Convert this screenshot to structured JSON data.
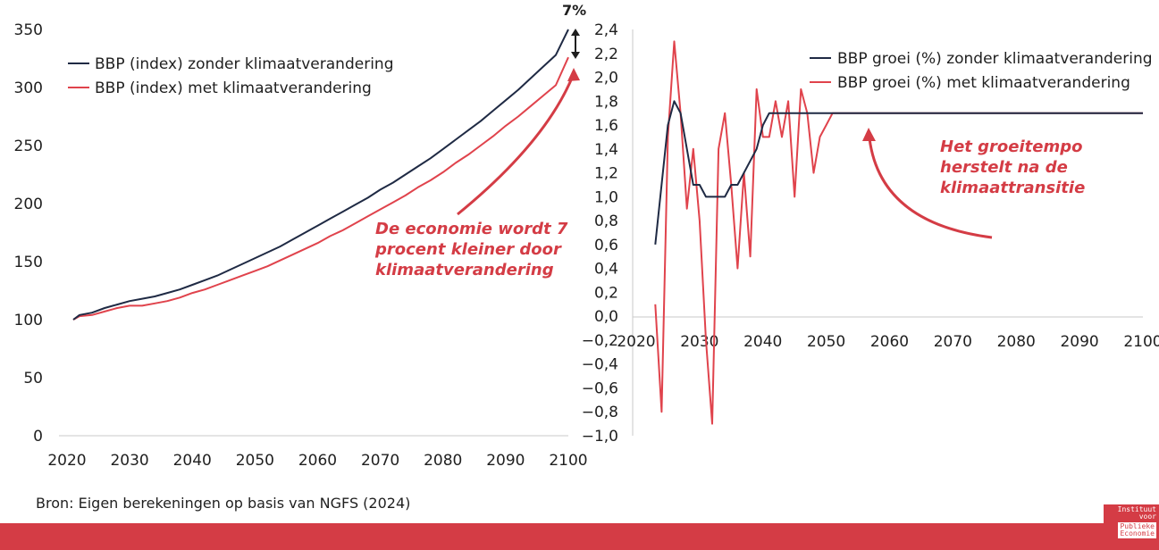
{
  "colors": {
    "dark": "#1f2a44",
    "red": "#e0434c",
    "accent": "#d43c45"
  },
  "source": "Bron: Eigen berekeningen op basis van NGFS (2024)",
  "logo": {
    "line1": "Instituut",
    "line2": "voor",
    "line3": "Publieke",
    "line4": "Economie"
  },
  "chart_data": [
    {
      "type": "line",
      "title": "",
      "xlabel": "",
      "ylabel": "",
      "xlim": [
        2020,
        2100
      ],
      "ylim": [
        0,
        350
      ],
      "xticks": [
        "2020",
        "2030",
        "2040",
        "2050",
        "2060",
        "2070",
        "2080",
        "2090",
        "2100"
      ],
      "yticks": [
        "0",
        "50",
        "100",
        "150",
        "200",
        "250",
        "300",
        "350"
      ],
      "legend_position": "top-left",
      "grid": false,
      "x": [
        2021,
        2022,
        2024,
        2026,
        2028,
        2030,
        2032,
        2034,
        2036,
        2038,
        2040,
        2042,
        2044,
        2046,
        2048,
        2050,
        2052,
        2054,
        2056,
        2058,
        2060,
        2062,
        2064,
        2066,
        2068,
        2070,
        2072,
        2074,
        2076,
        2078,
        2080,
        2082,
        2084,
        2086,
        2088,
        2090,
        2092,
        2094,
        2096,
        2098,
        2100
      ],
      "series": [
        {
          "name": "BBP (index) zonder klimaatverandering",
          "color": "#1f2a44",
          "values": [
            100,
            104,
            106,
            110,
            113,
            116,
            118,
            120,
            123,
            126,
            130,
            134,
            138,
            143,
            148,
            153,
            158,
            163,
            169,
            175,
            181,
            187,
            193,
            199,
            205,
            212,
            218,
            225,
            232,
            239,
            247,
            255,
            263,
            271,
            280,
            289,
            298,
            308,
            318,
            328,
            350
          ]
        },
        {
          "name": "BBP (index) met klimaatverandering",
          "color": "#e0434c",
          "values": [
            100,
            103,
            104,
            107,
            110,
            112,
            112,
            114,
            116,
            119,
            123,
            126,
            130,
            134,
            138,
            142,
            146,
            151,
            156,
            161,
            166,
            172,
            177,
            183,
            189,
            195,
            201,
            207,
            214,
            220,
            227,
            235,
            242,
            250,
            258,
            267,
            275,
            284,
            293,
            302,
            326
          ]
        }
      ],
      "annotations": [
        {
          "text": "7%"
        },
        {
          "text_lines": [
            "De economie wordt 7",
            "procent kleiner door",
            "klimaatverandering"
          ]
        }
      ]
    },
    {
      "type": "line",
      "title": "",
      "xlabel": "",
      "ylabel": "",
      "xlim": [
        2020,
        2100
      ],
      "ylim": [
        -1.0,
        2.4
      ],
      "xticks": [
        "2020",
        "2030",
        "2040",
        "2050",
        "2060",
        "2070",
        "2080",
        "2090",
        "2100"
      ],
      "yticks": [
        "−1,0",
        "−0,8",
        "−0,6",
        "−0,4",
        "−0,2",
        "0,0",
        "0,2",
        "0,4",
        "0,6",
        "0,8",
        "1,0",
        "1,2",
        "1,4",
        "1,6",
        "1,8",
        "2,0",
        "2,2",
        "2,4"
      ],
      "legend_position": "top-right",
      "grid": false,
      "series": [
        {
          "name": "BBP groei (%) zonder klimaatverandering",
          "color": "#1f2a44",
          "x": [
            2023,
            2025,
            2026,
            2027,
            2029,
            2030,
            2031,
            2032,
            2033,
            2034,
            2035,
            2036,
            2038,
            2039,
            2040,
            2041,
            2043,
            2050,
            2100
          ],
          "values": [
            0.6,
            1.6,
            1.8,
            1.7,
            1.1,
            1.1,
            1.0,
            1.0,
            1.0,
            1.0,
            1.1,
            1.1,
            1.3,
            1.4,
            1.6,
            1.7,
            1.7,
            1.7,
            1.7
          ]
        },
        {
          "name": "BBP groei (%) met klimaatverandering",
          "color": "#e0434c",
          "x": [
            2023,
            2024,
            2025,
            2026,
            2027,
            2028,
            2029,
            2030,
            2031,
            2032,
            2033,
            2034,
            2035,
            2036,
            2037,
            2038,
            2039,
            2040,
            2041,
            2042,
            2043,
            2044,
            2045,
            2046,
            2047,
            2048,
            2049,
            2050,
            2051,
            2100
          ],
          "values": [
            0.1,
            -0.8,
            1.5,
            2.3,
            1.7,
            0.9,
            1.4,
            0.8,
            -0.2,
            -0.9,
            1.4,
            1.7,
            1.1,
            0.4,
            1.2,
            0.5,
            1.9,
            1.5,
            1.5,
            1.8,
            1.5,
            1.8,
            1.0,
            1.9,
            1.7,
            1.2,
            1.5,
            1.6,
            1.7,
            1.7
          ]
        }
      ],
      "annotations": [
        {
          "text_lines": [
            "Het groeitempo",
            "herstelt na de",
            "klimaattransitie"
          ]
        }
      ]
    }
  ]
}
